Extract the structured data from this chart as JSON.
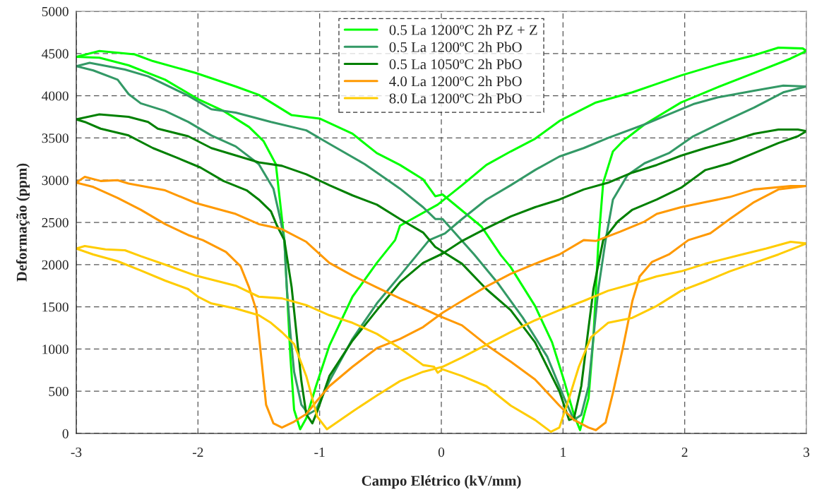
{
  "chart_data": {
    "type": "line",
    "xlabel": "Campo Elétrico (kV/mm)",
    "ylabel": "Deformação (ppm)",
    "xlim": [
      -3,
      3
    ],
    "xticks": [
      -3,
      -2,
      -1,
      0,
      1,
      2,
      3
    ],
    "ylim": [
      0,
      5000
    ],
    "yticks": [
      0,
      500,
      1000,
      1500,
      2000,
      2500,
      3000,
      3500,
      4000,
      4500,
      5000
    ],
    "grid": true,
    "legend": "top",
    "marker": "none",
    "line_style": "solid",
    "series": [
      {
        "name": "0.5 La 1200ºC 2h PZ + Z",
        "color": "#00ff00",
        "x": [
          -3,
          -2.81,
          -2.52,
          -2.37,
          -2.02,
          -1.69,
          -1.5,
          -1.23,
          -1.0,
          -0.73,
          -0.53,
          -0.34,
          -0.15,
          -0.05,
          0.01,
          0.33,
          0.49,
          0.57,
          0.77,
          0.91,
          1.01,
          1.09,
          1.14,
          1.21,
          1.25,
          1.29,
          1.33,
          1.41,
          1.49,
          1.67,
          1.97,
          2.27,
          2.57,
          2.87,
          3.0
        ],
        "values": [
          4460,
          4530,
          4490,
          4410,
          4270,
          4110,
          4010,
          3770,
          3730,
          3550,
          3320,
          3180,
          3010,
          2810,
          2830,
          2450,
          2110,
          1970,
          1510,
          1080,
          620,
          220,
          40,
          420,
          1140,
          2250,
          2970,
          3340,
          3460,
          3660,
          3920,
          4100,
          4270,
          4440,
          4530
        ]
      },
      {
        "color": "#00ff00",
        "x": [
          3.0,
          2.97,
          2.77,
          2.57,
          2.27,
          1.97,
          1.77,
          1.57,
          1.27,
          0.97,
          0.77,
          0.57,
          0.37,
          0.17,
          -0.03,
          -0.34,
          -0.38,
          -0.53,
          -0.73,
          -0.92,
          -1.03,
          -1.11,
          -1.16,
          -1.21,
          -1.24,
          -1.27,
          -1.29,
          -1.36,
          -1.46,
          -1.58,
          -1.79,
          -2.0,
          -2.27,
          -2.57,
          -2.81,
          -3
        ],
        "values": [
          4530,
          4560,
          4570,
          4480,
          4370,
          4240,
          4140,
          4040,
          3920,
          3700,
          3490,
          3340,
          3180,
          2940,
          2710,
          2460,
          2290,
          2020,
          1620,
          1040,
          560,
          180,
          50,
          280,
          900,
          1730,
          2290,
          3190,
          3460,
          3630,
          3820,
          3960,
          4190,
          4360,
          4450,
          4460
        ]
      },
      {
        "name": "0.5 La 1200ºC 2h PbO",
        "color": "#339966",
        "x": [
          -3,
          -2.89,
          -2.6,
          -2.41,
          -2.08,
          -1.89,
          -1.69,
          -1.4,
          -1.11,
          -0.92,
          -0.63,
          -0.34,
          -0.15,
          -0.05,
          0.01,
          0.27,
          0.47,
          0.67,
          0.87,
          1.01,
          1.09,
          1.15,
          1.21,
          1.25,
          1.29,
          1.35,
          1.41,
          1.53,
          1.67,
          1.87,
          2.07,
          2.27,
          2.57,
          2.81,
          3.0
        ],
        "values": [
          4350,
          4390,
          4310,
          4230,
          4000,
          3840,
          3800,
          3690,
          3590,
          3430,
          3190,
          2900,
          2680,
          2540,
          2540,
          2120,
          1770,
          1370,
          910,
          420,
          160,
          220,
          560,
          1140,
          1710,
          2290,
          2770,
          3060,
          3200,
          3320,
          3520,
          3660,
          3860,
          4040,
          4110
        ]
      },
      {
        "color": "#339966",
        "x": [
          3.0,
          2.81,
          2.57,
          2.27,
          2.07,
          1.87,
          1.67,
          1.37,
          1.17,
          0.97,
          0.77,
          0.57,
          0.37,
          0.17,
          0.03,
          -0.1,
          -0.34,
          -0.53,
          -0.73,
          -0.92,
          -1.03,
          -1.09,
          -1.15,
          -1.21,
          -1.24,
          -1.27,
          -1.29,
          -1.32,
          -1.38,
          -1.5,
          -1.69,
          -1.89,
          -2.08,
          -2.27,
          -2.47,
          -2.57,
          -2.66,
          -2.86,
          -3
        ],
        "values": [
          4110,
          4120,
          4060,
          3980,
          3900,
          3780,
          3660,
          3500,
          3380,
          3280,
          3120,
          2940,
          2770,
          2540,
          2370,
          2290,
          1870,
          1540,
          1120,
          620,
          280,
          230,
          340,
          730,
          1180,
          1730,
          2290,
          2520,
          2900,
          3190,
          3400,
          3530,
          3690,
          3820,
          3910,
          4020,
          4190,
          4300,
          4350
        ]
      },
      {
        "name": "0.5 La 1050ºC 2h PbO",
        "color": "#008000",
        "x": [
          -3,
          -2.81,
          -2.57,
          -2.41,
          -2.33,
          -2.08,
          -1.89,
          -1.5,
          -1.31,
          -1.11,
          -0.92,
          -0.73,
          -0.53,
          -0.34,
          -0.15,
          -0.05,
          0.17,
          0.37,
          0.57,
          0.77,
          0.97,
          1.05,
          1.09,
          1.15,
          1.2,
          1.25,
          1.33,
          1.45,
          1.57,
          1.77,
          1.97,
          2.17,
          2.37,
          2.57,
          2.77,
          2.93,
          3.0
        ],
        "values": [
          3720,
          3780,
          3750,
          3690,
          3610,
          3520,
          3380,
          3210,
          3170,
          3070,
          2940,
          2820,
          2710,
          2540,
          2380,
          2210,
          2010,
          1710,
          1460,
          1080,
          500,
          160,
          180,
          560,
          1140,
          1710,
          2290,
          2510,
          2650,
          2770,
          2910,
          3120,
          3200,
          3320,
          3440,
          3520,
          3580
        ]
      },
      {
        "color": "#008000",
        "x": [
          3.0,
          2.93,
          2.77,
          2.57,
          2.37,
          2.17,
          1.97,
          1.77,
          1.57,
          1.37,
          1.17,
          0.97,
          0.77,
          0.57,
          0.37,
          0.17,
          0.01,
          -0.15,
          -0.34,
          -0.53,
          -0.73,
          -0.92,
          -1.02,
          -1.06,
          -1.11,
          -1.15,
          -1.19,
          -1.23,
          -1.29,
          -1.35,
          -1.4,
          -1.5,
          -1.6,
          -1.79,
          -1.98,
          -2.18,
          -2.37,
          -2.57,
          -2.8,
          -2.93,
          -3
        ],
        "values": [
          3580,
          3600,
          3600,
          3550,
          3460,
          3380,
          3290,
          3180,
          3090,
          2970,
          2890,
          2770,
          2680,
          2570,
          2430,
          2280,
          2130,
          2020,
          1790,
          1460,
          1100,
          680,
          260,
          120,
          230,
          620,
          1180,
          1730,
          2290,
          2460,
          2630,
          2770,
          2880,
          2990,
          3150,
          3270,
          3380,
          3530,
          3610,
          3690,
          3720
        ]
      },
      {
        "name": "4.0 La 1200ºC 2h PbO",
        "color": "#ff9900",
        "x": [
          -3,
          -2.93,
          -2.8,
          -2.66,
          -2.57,
          -2.27,
          -2.02,
          -1.69,
          -1.5,
          -1.31,
          -1.11,
          -0.92,
          -0.73,
          -0.53,
          -0.34,
          -0.15,
          -0.03,
          0.17,
          0.37,
          0.57,
          0.77,
          0.97,
          1.09,
          1.21,
          1.27,
          1.35,
          1.41,
          1.49,
          1.57,
          1.63,
          1.73,
          1.87,
          2.03,
          2.21,
          2.37,
          2.57,
          2.77,
          3.0
        ],
        "values": [
          2970,
          3040,
          2990,
          3000,
          2960,
          2880,
          2730,
          2600,
          2480,
          2420,
          2270,
          2020,
          1870,
          1730,
          1600,
          1480,
          1400,
          1280,
          1050,
          850,
          640,
          330,
          160,
          70,
          40,
          130,
          480,
          1000,
          1570,
          1860,
          2030,
          2120,
          2290,
          2370,
          2540,
          2740,
          2890,
          2930
        ]
      },
      {
        "color": "#ff9900",
        "x": [
          3.0,
          2.87,
          2.57,
          2.37,
          2.17,
          1.97,
          1.77,
          1.67,
          1.47,
          1.27,
          1.17,
          0.97,
          0.77,
          0.57,
          0.37,
          0.17,
          0.01,
          -0.15,
          -0.34,
          -0.53,
          -0.73,
          -0.92,
          -1.02,
          -1.11,
          -1.21,
          -1.31,
          -1.38,
          -1.44,
          -1.48,
          -1.52,
          -1.58,
          -1.65,
          -1.77,
          -1.96,
          -2.08,
          -2.27,
          -2.47,
          -2.66,
          -2.86,
          -3
        ],
        "values": [
          2930,
          2930,
          2890,
          2800,
          2740,
          2680,
          2600,
          2510,
          2390,
          2280,
          2290,
          2120,
          2010,
          1890,
          1740,
          1570,
          1430,
          1260,
          1120,
          1010,
          790,
          560,
          390,
          230,
          140,
          70,
          120,
          340,
          900,
          1460,
          1730,
          1980,
          2150,
          2290,
          2350,
          2480,
          2650,
          2790,
          2920,
          2970
        ]
      },
      {
        "name": "8.0 La 1200ºC 2h PbO",
        "color": "#ffcc00",
        "x": [
          -3,
          -2.93,
          -2.76,
          -2.6,
          -2.47,
          -2.23,
          -2.02,
          -1.69,
          -1.5,
          -1.31,
          -1.11,
          -0.92,
          -0.73,
          -0.53,
          -0.34,
          -0.15,
          -0.06,
          -0.03,
          0.01,
          0.17,
          0.37,
          0.57,
          0.77,
          0.9,
          0.97,
          1.05,
          1.13,
          1.23,
          1.37,
          1.57,
          1.77,
          1.97,
          2.17,
          2.37,
          2.57,
          2.77,
          3.0
        ],
        "values": [
          2190,
          2220,
          2180,
          2170,
          2100,
          1980,
          1870,
          1750,
          1620,
          1600,
          1520,
          1400,
          1310,
          1180,
          1010,
          810,
          790,
          720,
          760,
          680,
          560,
          330,
          160,
          20,
          70,
          420,
          790,
          1140,
          1310,
          1370,
          1510,
          1690,
          1800,
          1920,
          2020,
          2120,
          2250
        ]
      },
      {
        "color": "#ffcc00",
        "x": [
          3.0,
          2.87,
          2.67,
          2.47,
          2.17,
          1.97,
          1.77,
          1.57,
          1.37,
          1.17,
          0.97,
          0.77,
          0.57,
          0.37,
          0.17,
          0.01,
          -0.15,
          -0.34,
          -0.53,
          -0.73,
          -0.94,
          -1.02,
          -1.11,
          -1.21,
          -1.31,
          -1.4,
          -1.5,
          -1.69,
          -1.89,
          -2.0,
          -2.08,
          -2.27,
          -2.47,
          -2.66,
          -2.86,
          -3
        ],
        "values": [
          2250,
          2270,
          2190,
          2120,
          2010,
          1920,
          1860,
          1770,
          1690,
          1570,
          1460,
          1340,
          1200,
          1050,
          900,
          790,
          730,
          620,
          450,
          260,
          50,
          200,
          680,
          1060,
          1200,
          1310,
          1400,
          1480,
          1540,
          1620,
          1710,
          1810,
          1930,
          2040,
          2120,
          2190
        ]
      }
    ]
  }
}
